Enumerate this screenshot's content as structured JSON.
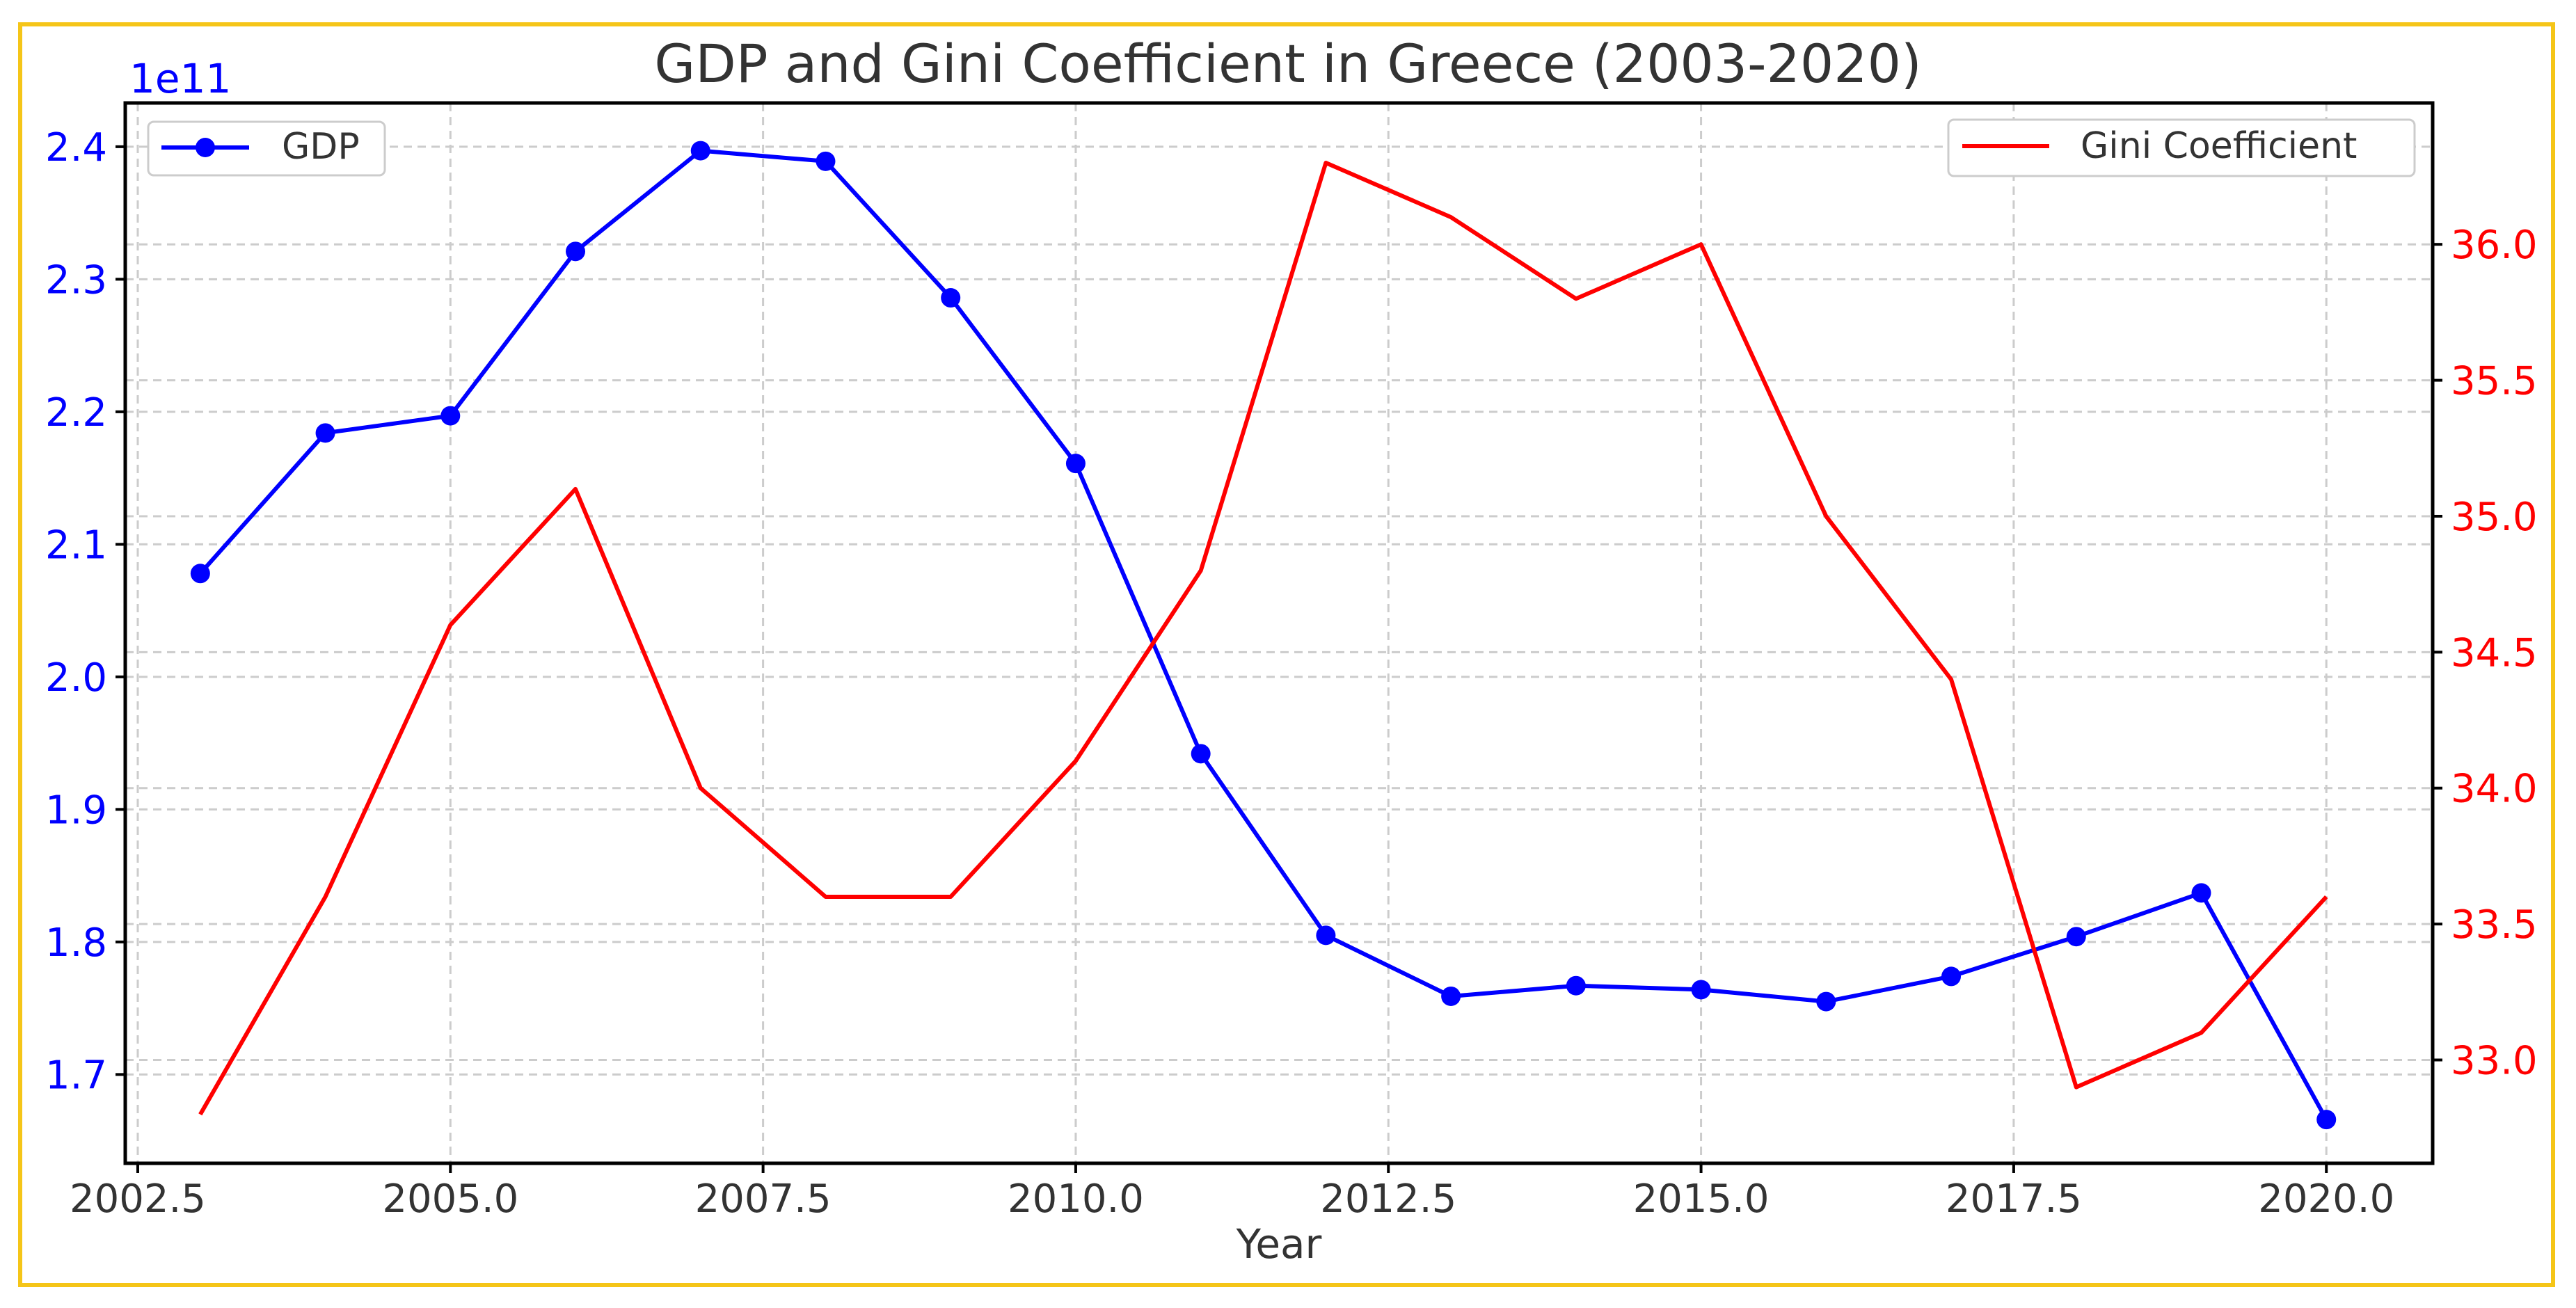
{
  "chart_data": {
    "type": "line",
    "title": "GDP and Gini Coefficient in Greece (2003-2020)",
    "xlabel": "Year",
    "x": [
      2003,
      2004,
      2005,
      2006,
      2007,
      2008,
      2009,
      2010,
      2011,
      2012,
      2013,
      2014,
      2015,
      2016,
      2017,
      2018,
      2019,
      2020
    ],
    "xlim": [
      2002.4,
      2020.85
    ],
    "x_ticks": [
      2002.5,
      2005.0,
      2007.5,
      2010.0,
      2012.5,
      2015.0,
      2017.5,
      2020.0
    ],
    "x_tick_labels": [
      "2002.5",
      "2005.0",
      "2007.5",
      "2010.0",
      "2012.5",
      "2015.0",
      "2017.5",
      "2020.0"
    ],
    "grid": true,
    "left_axis": {
      "offset_label": "1e11",
      "ylim": [
        1.633,
        2.433
      ],
      "ticks": [
        1.7,
        1.8,
        1.9,
        2.0,
        2.1,
        2.2,
        2.3,
        2.4
      ],
      "tick_labels": [
        "1.7",
        "1.8",
        "1.9",
        "2.0",
        "2.1",
        "2.2",
        "2.3",
        "2.4"
      ],
      "color": "#0000ff"
    },
    "right_axis": {
      "ylim": [
        32.62,
        36.52
      ],
      "ticks": [
        33.0,
        33.5,
        34.0,
        34.5,
        35.0,
        35.5,
        36.0
      ],
      "tick_labels": [
        "33.0",
        "33.5",
        "34.0",
        "34.5",
        "35.0",
        "35.5",
        "36.0"
      ],
      "color": "#ff0000"
    },
    "series": [
      {
        "name": "GDP",
        "axis": "left",
        "color": "#0000ff",
        "marker": "circle",
        "legend_position": "upper-left",
        "values": [
          2.078,
          2.184,
          2.197,
          2.321,
          2.397,
          2.389,
          2.286,
          2.161,
          1.942,
          1.805,
          1.759,
          1.767,
          1.764,
          1.755,
          1.774,
          1.804,
          1.837,
          1.666
        ]
      },
      {
        "name": "Gini Coefficient",
        "axis": "right",
        "color": "#ff0000",
        "marker": "none",
        "legend_position": "upper-right",
        "values": [
          32.8,
          33.6,
          34.6,
          35.1,
          34.0,
          33.6,
          33.6,
          34.1,
          34.8,
          36.3,
          36.1,
          35.8,
          36.0,
          35.0,
          34.4,
          32.9,
          33.1,
          33.6
        ]
      }
    ]
  }
}
